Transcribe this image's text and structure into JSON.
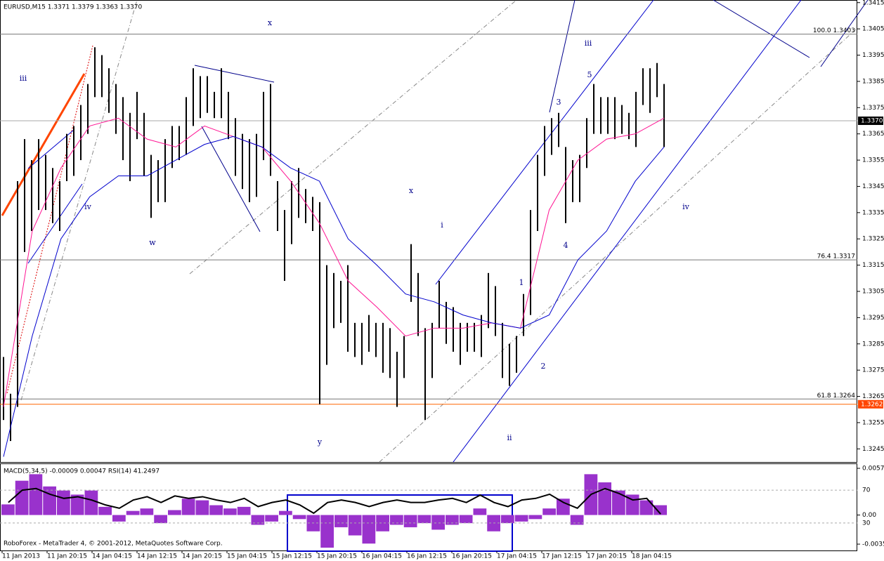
{
  "chart_data": {
    "type": "range-bar",
    "title": "EURUSD,M15  1.3371 1.3379 1.3363 1.3370",
    "indicator_label": "MACD(5,34,5) -0.00009 0.00047  RSI(14) 41.2497",
    "footer": "RoboForex - MetaTrader 4, © 2001-2012, MetaQuotes Software Corp.",
    "categories": [
      "11 Jan 2013",
      "11 Jan 20:15",
      "14 Jan 04:15",
      "14 Jan 12:15",
      "14 Jan 20:15",
      "15 Jan 04:15",
      "15 Jan 12:15",
      "15 Jan 20:15",
      "16 Jan 04:15",
      "16 Jan 12:15",
      "16 Jan 20:15",
      "17 Jan 04:15",
      "17 Jan 12:15",
      "17 Jan 20:15",
      "18 Jan 04:15"
    ],
    "color": "#000000",
    "high": [
      1.328,
      1.3266,
      1.3347,
      1.3363,
      1.3355,
      1.3363,
      1.3357,
      1.3352,
      1.3347,
      1.3365,
      1.3368,
      1.3376,
      1.3384,
      1.3398,
      1.3395,
      1.339,
      1.3384,
      1.3379,
      1.3373,
      1.3381,
      1.3373,
      1.3357,
      1.3355,
      1.3363,
      1.3368,
      1.3368,
      1.3379,
      1.339,
      1.3387,
      1.3387,
      1.3381,
      1.339,
      1.3381,
      1.3371,
      1.3365,
      1.3363,
      1.3365,
      1.3381,
      1.3384,
      1.3347,
      1.3336,
      1.3347,
      1.3352,
      1.3344,
      1.3341,
      1.3339,
      1.3315,
      1.3312,
      1.3309,
      1.3315,
      1.3293,
      1.3293,
      1.3296,
      1.3293,
      1.3293,
      1.3291,
      1.3282,
      1.3288,
      1.3323,
      1.3312,
      1.3291,
      1.3293,
      1.3309,
      1.3301,
      1.3299,
      1.3293,
      1.3293,
      1.3293,
      1.3296,
      1.3312,
      1.3307,
      1.3293,
      1.3285,
      1.3288,
      1.3304,
      1.3336,
      1.3357,
      1.3368,
      1.3371,
      1.3373,
      1.336,
      1.3355,
      1.3357,
      1.3371,
      1.3384,
      1.3379,
      1.3379,
      1.3379,
      1.3376,
      1.3373,
      1.3381,
      1.339,
      1.339,
      1.3392,
      1.3384
    ],
    "low": [
      1.3256,
      1.3248,
      1.3261,
      1.332,
      1.3328,
      1.3336,
      1.3336,
      1.3331,
      1.3328,
      1.3347,
      1.3349,
      1.3355,
      1.3365,
      1.3379,
      1.3379,
      1.3373,
      1.3365,
      1.3355,
      1.3347,
      1.3363,
      1.3349,
      1.3333,
      1.3339,
      1.3339,
      1.3352,
      1.3355,
      1.3357,
      1.3368,
      1.3371,
      1.3373,
      1.3371,
      1.3371,
      1.3363,
      1.3349,
      1.3344,
      1.3339,
      1.3341,
      1.3355,
      1.3349,
      1.3328,
      1.3309,
      1.3323,
      1.3333,
      1.3331,
      1.3328,
      1.3262,
      1.3277,
      1.3291,
      1.3293,
      1.3282,
      1.328,
      1.3277,
      1.3282,
      1.328,
      1.3274,
      1.3272,
      1.3261,
      1.3272,
      1.3301,
      1.3288,
      1.3256,
      1.3272,
      1.3291,
      1.3285,
      1.3282,
      1.3277,
      1.3282,
      1.3282,
      1.328,
      1.3291,
      1.3288,
      1.3272,
      1.3269,
      1.3274,
      1.3288,
      1.3296,
      1.3328,
      1.3349,
      1.3357,
      1.336,
      1.3331,
      1.3339,
      1.3339,
      1.3352,
      1.3365,
      1.3365,
      1.3365,
      1.3363,
      1.3365,
      1.3363,
      1.336,
      1.3376,
      1.3373,
      1.3379,
      1.336
    ],
    "moving_averages": [
      {
        "color": "#ff1493",
        "values": [
          1.3261,
          1.3328,
          1.3352,
          1.3368,
          1.3371,
          1.3363,
          1.336,
          1.3368,
          1.3364,
          1.336,
          1.3347,
          1.3331,
          1.3309,
          1.3299,
          1.3288,
          1.3291,
          1.3291,
          1.3293,
          1.3291,
          1.3336,
          1.3355,
          1.3363,
          1.3365,
          1.3371
        ]
      },
      {
        "color": "#0000cd",
        "values": [
          1.3242,
          1.3288,
          1.3325,
          1.3341,
          1.3349,
          1.3349,
          1.3355,
          1.3361,
          1.3364,
          1.336,
          1.3352,
          1.3347,
          1.3325,
          1.3315,
          1.3304,
          1.3301,
          1.3296,
          1.3293,
          1.3291,
          1.3296,
          1.3317,
          1.3328,
          1.3347,
          1.336
        ]
      }
    ],
    "ylim": [
      1.324,
      1.3416
    ],
    "yticks": [
      1.3415,
      1.3405,
      1.3395,
      1.3385,
      1.3375,
      1.3365,
      1.3355,
      1.3345,
      1.3335,
      1.3325,
      1.3315,
      1.3305,
      1.3295,
      1.3285,
      1.3275,
      1.3265,
      1.3255,
      1.3245
    ],
    "current_price": {
      "value": 1.337,
      "label": "1.3370"
    },
    "alert_level": 1.3262,
    "levels": [
      {
        "value": 1.3403,
        "label": "100.0 1.3403"
      },
      {
        "value": 1.3317,
        "label": "76.4 1.3317"
      },
      {
        "value": 1.3264,
        "label": "61.8 1.3264"
      }
    ],
    "annotations": [
      "x",
      "iii",
      "iv",
      "w",
      "x",
      "i",
      "y",
      "ii",
      "1",
      "2",
      "3",
      "4",
      "5",
      "iii",
      "iv"
    ],
    "macd": {
      "color": "#9932cc",
      "values": [
        0.0013,
        0.0042,
        0.005,
        0.0035,
        0.003,
        0.0025,
        0.003,
        0.001,
        -0.0008,
        0.0005,
        0.0008,
        -0.001,
        0.0006,
        0.002,
        0.0018,
        0.0012,
        0.0008,
        0.001,
        -0.0012,
        -0.0008,
        0.0005,
        -0.0005,
        -0.002,
        -0.004,
        -0.0015,
        -0.0025,
        -0.0035,
        -0.002,
        -0.0012,
        -0.0015,
        -0.001,
        -0.0018,
        -0.0012,
        -0.001,
        0.0008,
        -0.002,
        -0.001,
        -0.0008,
        -0.0005,
        0.0008,
        0.002,
        -0.0012,
        0.005,
        0.004,
        0.003,
        0.0025,
        0.0018,
        0.0012
      ],
      "ylim": [
        -0.00357,
        0.00572
      ],
      "yticks": [
        0.00572,
        {
          "value": 0,
          "label": "0.00"
        },
        -0.00357
      ]
    },
    "rsi": {
      "color": "#000000",
      "values": [
        55,
        70,
        72,
        65,
        60,
        62,
        58,
        52,
        48,
        58,
        62,
        55,
        63,
        60,
        62,
        58,
        55,
        60,
        50,
        55,
        58,
        52,
        42,
        55,
        58,
        55,
        50,
        55,
        58,
        55,
        55,
        58,
        60,
        55,
        64,
        55,
        50,
        58,
        60,
        65,
        55,
        48,
        65,
        72,
        66,
        58,
        60,
        41
      ],
      "ylim": [
        0,
        100
      ],
      "yticks": [
        70,
        30
      ]
    }
  }
}
